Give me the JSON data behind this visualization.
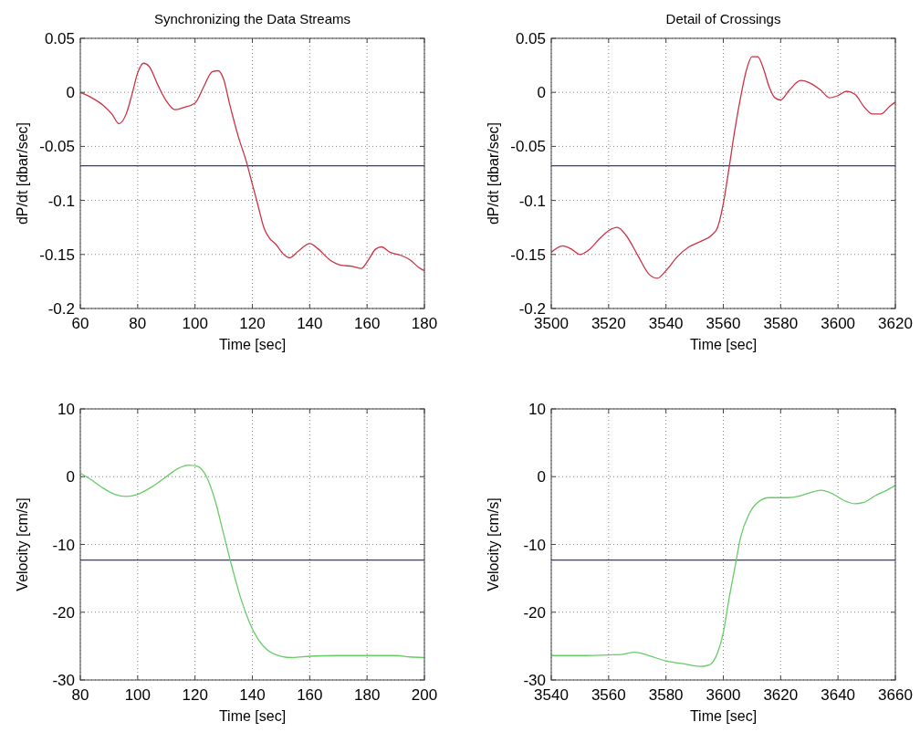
{
  "chart_data": [
    {
      "type": "line",
      "title": "Synchronizing the Data Streams",
      "xlabel": "Time [sec]",
      "ylabel": "dP/dt [dbar/sec]",
      "xlim": [
        60,
        180
      ],
      "xticks": [
        60,
        80,
        100,
        120,
        140,
        160,
        180
      ],
      "ylim": [
        -0.2,
        0.05
      ],
      "yticks": [
        -0.2,
        -0.15,
        -0.1,
        -0.05,
        0,
        0.05
      ],
      "grid": true,
      "x": [
        60,
        64,
        68,
        71,
        73.5,
        76,
        78,
        80,
        82,
        84,
        87,
        90,
        93,
        96,
        100,
        103,
        106,
        108,
        110,
        112,
        115,
        118,
        120,
        122,
        124,
        126,
        128,
        131,
        133,
        136,
        140,
        143,
        147,
        151,
        155,
        158,
        160,
        163,
        165,
        168,
        172,
        175,
        178,
        180
      ],
      "series": [
        {
          "color": "#cc3344",
          "values": [
            0,
            -0.005,
            -0.012,
            -0.02,
            -0.029,
            -0.02,
            -0.002,
            0.018,
            0.027,
            0.024,
            0.007,
            -0.008,
            -0.016,
            -0.014,
            -0.01,
            0.005,
            0.019,
            0.02,
            0.012,
            -0.01,
            -0.04,
            -0.065,
            -0.085,
            -0.105,
            -0.125,
            -0.135,
            -0.14,
            -0.15,
            -0.153,
            -0.147,
            -0.14,
            -0.145,
            -0.155,
            -0.16,
            -0.161,
            -0.163,
            -0.157,
            -0.145,
            -0.143,
            -0.148,
            -0.151,
            -0.155,
            -0.162,
            -0.165
          ]
        }
      ],
      "ref_lines": [
        {
          "axis": "y",
          "value": -0.068,
          "color": "#3333aa"
        }
      ]
    },
    {
      "type": "line",
      "title": "Detail of Crossings",
      "xlabel": "Time [sec]",
      "ylabel": "dP/dt [dbar/sec]",
      "xlim": [
        3500,
        3620
      ],
      "xticks": [
        3500,
        3520,
        3540,
        3560,
        3580,
        3600,
        3620
      ],
      "ylim": [
        -0.2,
        0.05
      ],
      "yticks": [
        -0.2,
        -0.15,
        -0.1,
        -0.05,
        0,
        0.05
      ],
      "grid": true,
      "x": [
        3500,
        3504,
        3507,
        3510,
        3513,
        3517,
        3520,
        3523,
        3526,
        3530,
        3534,
        3537,
        3540,
        3544,
        3548,
        3552,
        3556,
        3558,
        3560,
        3562,
        3564,
        3566,
        3568,
        3570,
        3572,
        3574,
        3576,
        3578,
        3580,
        3583,
        3587,
        3590,
        3594,
        3597,
        3600,
        3603,
        3606,
        3609,
        3612,
        3615,
        3618,
        3620
      ],
      "series": [
        {
          "color": "#cc3344",
          "values": [
            -0.148,
            -0.142,
            -0.145,
            -0.15,
            -0.146,
            -0.135,
            -0.128,
            -0.125,
            -0.132,
            -0.15,
            -0.168,
            -0.172,
            -0.165,
            -0.152,
            -0.143,
            -0.138,
            -0.132,
            -0.125,
            -0.103,
            -0.07,
            -0.035,
            -0.005,
            0.02,
            0.033,
            0.033,
            0.022,
            0.005,
            -0.005,
            -0.007,
            0.002,
            0.011,
            0.009,
            0.002,
            -0.005,
            -0.003,
            0.001,
            -0.002,
            -0.013,
            -0.02,
            -0.02,
            -0.013,
            -0.009
          ]
        }
      ],
      "ref_lines": [
        {
          "axis": "y",
          "value": -0.068,
          "color": "#3333aa"
        }
      ]
    },
    {
      "type": "line",
      "xlabel": "Time [sec]",
      "ylabel": "Velocity [cm/s]",
      "xlim": [
        80,
        200
      ],
      "xticks": [
        80,
        100,
        120,
        140,
        160,
        180,
        200
      ],
      "ylim": [
        -30,
        10
      ],
      "yticks": [
        -30,
        -20,
        -10,
        0,
        10
      ],
      "grid": true,
      "x": [
        80,
        84,
        88,
        92,
        96,
        100,
        105,
        110,
        114,
        118,
        121,
        124,
        127,
        130,
        133,
        136,
        139,
        142,
        145,
        150,
        154,
        160,
        170,
        180,
        190,
        195,
        200
      ],
      "series": [
        {
          "color": "#66cc66",
          "values": [
            0.5,
            -0.5,
            -1.7,
            -2.6,
            -2.9,
            -2.6,
            -1.5,
            0,
            1.2,
            1.7,
            1.5,
            0,
            -3.5,
            -8.5,
            -13.5,
            -18,
            -21.5,
            -24,
            -25.5,
            -26.5,
            -26.7,
            -26.5,
            -26.4,
            -26.4,
            -26.4,
            -26.6,
            -26.7
          ]
        }
      ],
      "ref_lines": [
        {
          "axis": "y",
          "value": -12.3,
          "color": "#3333aa"
        }
      ]
    },
    {
      "type": "line",
      "xlabel": "Time [sec]",
      "ylabel": "Velocity [cm/s]",
      "xlim": [
        3540,
        3660
      ],
      "xticks": [
        3540,
        3560,
        3580,
        3600,
        3620,
        3640,
        3660
      ],
      "ylim": [
        -30,
        10
      ],
      "yticks": [
        -30,
        -20,
        -10,
        0,
        10
      ],
      "grid": true,
      "x": [
        3540,
        3550,
        3560,
        3565,
        3569,
        3574,
        3580,
        3586,
        3592,
        3595,
        3598,
        3600,
        3602,
        3604,
        3606,
        3609,
        3612,
        3616,
        3622,
        3627,
        3630,
        3634,
        3638,
        3642,
        3646,
        3649,
        3653,
        3657,
        3660
      ],
      "series": [
        {
          "color": "#66cc66",
          "values": [
            -26.4,
            -26.4,
            -26.3,
            -26.2,
            -25.9,
            -26.4,
            -27.2,
            -27.6,
            -28,
            -27.8,
            -26,
            -23,
            -18,
            -13.5,
            -9,
            -5.5,
            -3.8,
            -3.1,
            -3.1,
            -2.8,
            -2.4,
            -2,
            -2.5,
            -3.5,
            -4,
            -3.8,
            -2.8,
            -2,
            -1.3
          ]
        }
      ],
      "ref_lines": [
        {
          "axis": "y",
          "value": -12.3,
          "color": "#3333aa"
        }
      ]
    }
  ]
}
